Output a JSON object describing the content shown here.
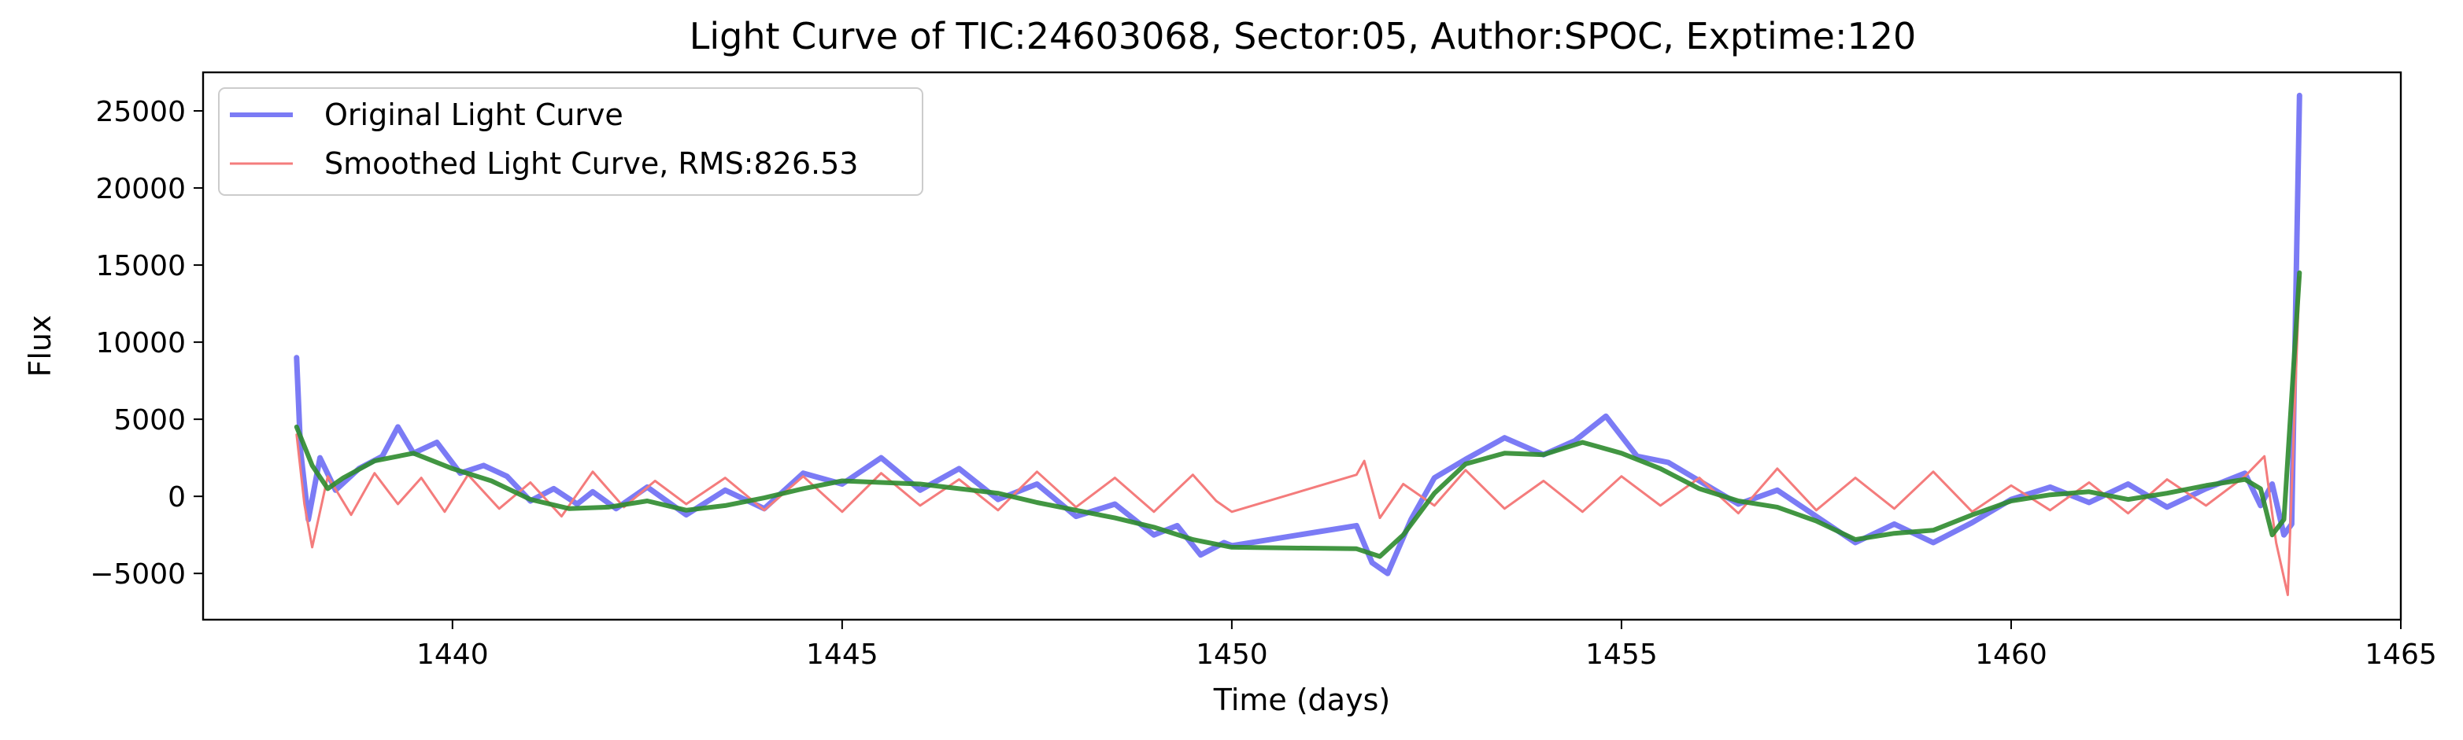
{
  "chart_data": {
    "type": "line",
    "title": "Light Curve of TIC:24603068, Sector:05, Author:SPOC, Exptime:120",
    "xlabel": "Time (days)",
    "ylabel": "Flux",
    "xlim": [
      1436.8,
      1465
    ],
    "ylim": [
      -8000,
      27500
    ],
    "xticks": [
      1440,
      1445,
      1450,
      1455,
      1460,
      1465
    ],
    "yticks": [
      -5000,
      0,
      5000,
      10000,
      15000,
      20000,
      25000
    ],
    "grid": false,
    "legend_position": "upper-left",
    "series": [
      {
        "name": "Original Light Curve",
        "color": "#7b7bf5",
        "x": [
          1438.0,
          1438.05,
          1438.15,
          1438.3,
          1438.5,
          1438.8,
          1439.1,
          1439.3,
          1439.5,
          1439.8,
          1440.1,
          1440.4,
          1440.7,
          1441.0,
          1441.3,
          1441.6,
          1441.8,
          1442.1,
          1442.5,
          1443.0,
          1443.5,
          1444.0,
          1444.5,
          1445.0,
          1445.5,
          1446.0,
          1446.5,
          1447.0,
          1447.5,
          1448.0,
          1448.5,
          1449.0,
          1449.3,
          1449.6,
          1449.9,
          1450.0,
          1451.6,
          1451.8,
          1452.0,
          1452.3,
          1452.6,
          1453.0,
          1453.5,
          1454.0,
          1454.4,
          1454.8,
          1455.2,
          1455.6,
          1456.0,
          1456.5,
          1457.0,
          1457.5,
          1458.0,
          1458.5,
          1459.0,
          1459.5,
          1460.0,
          1460.5,
          1461.0,
          1461.5,
          1462.0,
          1462.5,
          1463.0,
          1463.2,
          1463.35,
          1463.5,
          1463.6,
          1463.7
        ],
        "values": [
          9000,
          3000,
          -1500,
          2500,
          400,
          1800,
          2600,
          4500,
          2800,
          3500,
          1500,
          2000,
          1300,
          -300,
          500,
          -500,
          300,
          -800,
          600,
          -1200,
          400,
          -800,
          1500,
          800,
          2500,
          400,
          1800,
          -200,
          800,
          -1300,
          -500,
          -2500,
          -1900,
          -3800,
          -3000,
          -3200,
          -1900,
          -4300,
          -5000,
          -1500,
          1200,
          2400,
          3800,
          2700,
          3600,
          5200,
          2600,
          2200,
          1000,
          -500,
          400,
          -1300,
          -3000,
          -1800,
          -3000,
          -1700,
          -200,
          600,
          -400,
          800,
          -700,
          500,
          1500,
          -600,
          800,
          -2500,
          -1800,
          26000
        ]
      },
      {
        "name": "Smoothed Light Curve, RMS:826.53",
        "color": "#f47c7c",
        "x": [
          1438.0,
          1438.1,
          1438.2,
          1438.4,
          1438.7,
          1439.0,
          1439.3,
          1439.6,
          1439.9,
          1440.2,
          1440.6,
          1441.0,
          1441.4,
          1441.8,
          1442.2,
          1442.6,
          1443.0,
          1443.5,
          1444.0,
          1444.5,
          1445.0,
          1445.5,
          1446.0,
          1446.5,
          1447.0,
          1447.5,
          1448.0,
          1448.5,
          1449.0,
          1449.5,
          1449.8,
          1450.0,
          1451.6,
          1451.7,
          1451.9,
          1452.2,
          1452.6,
          1453.0,
          1453.5,
          1454.0,
          1454.5,
          1455.0,
          1455.5,
          1456.0,
          1456.5,
          1457.0,
          1457.5,
          1458.0,
          1458.5,
          1459.0,
          1459.5,
          1460.0,
          1460.5,
          1461.0,
          1461.5,
          1462.0,
          1462.5,
          1463.0,
          1463.25,
          1463.4,
          1463.55,
          1463.7
        ],
        "values": [
          4000,
          -500,
          -3300,
          1300,
          -1200,
          1500,
          -500,
          1200,
          -1000,
          1400,
          -800,
          900,
          -1300,
          1600,
          -700,
          1000,
          -500,
          1200,
          -900,
          1300,
          -1000,
          1500,
          -600,
          1100,
          -900,
          1600,
          -700,
          1200,
          -1000,
          1400,
          -300,
          -1000,
          1400,
          2300,
          -1400,
          800,
          -600,
          1700,
          -800,
          1000,
          -1000,
          1300,
          -600,
          1200,
          -1100,
          1800,
          -900,
          1200,
          -800,
          1600,
          -1000,
          700,
          -900,
          900,
          -1100,
          1100,
          -600,
          1300,
          2600,
          -3000,
          -6400,
          14200
        ]
      },
      {
        "name": "",
        "color": "#2e8b2e",
        "x": [
          1438.0,
          1438.2,
          1438.4,
          1438.6,
          1439.0,
          1439.5,
          1440.0,
          1440.5,
          1441.0,
          1441.5,
          1442.0,
          1442.5,
          1443.0,
          1443.5,
          1444.0,
          1444.5,
          1445.0,
          1445.5,
          1446.0,
          1446.5,
          1447.0,
          1447.5,
          1448.0,
          1448.5,
          1449.0,
          1449.5,
          1450.0,
          1451.6,
          1451.9,
          1452.2,
          1452.6,
          1453.0,
          1453.5,
          1454.0,
          1454.5,
          1455.0,
          1455.5,
          1456.0,
          1456.5,
          1457.0,
          1457.5,
          1458.0,
          1458.5,
          1459.0,
          1459.5,
          1460.0,
          1460.5,
          1461.0,
          1461.5,
          1462.0,
          1462.5,
          1463.0,
          1463.2,
          1463.35,
          1463.5,
          1463.7
        ],
        "values": [
          4500,
          2000,
          500,
          1200,
          2300,
          2800,
          1800,
          1000,
          -200,
          -800,
          -700,
          -300,
          -900,
          -600,
          -100,
          500,
          1000,
          900,
          800,
          500,
          200,
          -400,
          -900,
          -1400,
          -2000,
          -2800,
          -3300,
          -3400,
          -3900,
          -2500,
          200,
          2100,
          2800,
          2700,
          3500,
          2800,
          1800,
          500,
          -300,
          -700,
          -1600,
          -2800,
          -2400,
          -2200,
          -1200,
          -300,
          100,
          300,
          -200,
          200,
          700,
          1100,
          500,
          -2500,
          -1500,
          14500
        ]
      }
    ]
  }
}
